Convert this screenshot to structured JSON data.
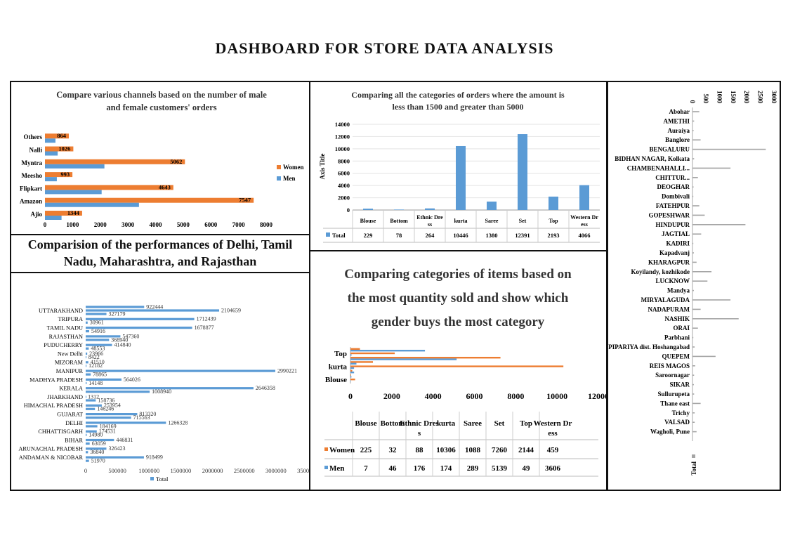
{
  "page_title": "DASHBOARD  FOR  STORE  DATA  ANALYSIS",
  "state_heading": "Comparision of the performances of Delhi, Tamil Nadu, Maharashtra, and Rajasthan",
  "colors": {
    "women": "#ED7D31",
    "men": "#5B9BD5",
    "total": "#5B9BD5",
    "gray": "#A5A5A5"
  },
  "chart_data": [
    {
      "id": "channels",
      "type": "bar",
      "orientation": "horizontal",
      "title": "Compare various channels based on the number of male and female customers' orders",
      "categories": [
        "Ajio",
        "Amazon",
        "Flipkart",
        "Meesho",
        "Myntra",
        "Nalli",
        "Others"
      ],
      "series": [
        {
          "name": "Women",
          "values": [
            1344,
            7547,
            4643,
            993,
            5062,
            1026,
            864
          ]
        },
        {
          "name": "Men",
          "values": [
            600,
            3400,
            2050,
            430,
            2150,
            460,
            380
          ]
        }
      ],
      "xlim": [
        0,
        8000
      ],
      "xticks": [
        0,
        1000,
        2000,
        3000,
        4000,
        5000,
        6000,
        7000,
        8000
      ],
      "legend": "right"
    },
    {
      "id": "amount",
      "type": "bar",
      "title": "Comparing all the categories of orders where the amount is less than 1500 and greater than 5000",
      "ylabel": "Axis Title",
      "categories": [
        "Blouse",
        "Bottom",
        "Ethnic Dre ss",
        "kurta",
        "Saree",
        "Set",
        "Top",
        "Western Dr ess"
      ],
      "series": [
        {
          "name": "Total",
          "values": [
            229,
            78,
            264,
            10446,
            1380,
            12391,
            2193,
            4066
          ]
        }
      ],
      "ylim": [
        0,
        14000
      ],
      "yticks": [
        0,
        2000,
        4000,
        6000,
        8000,
        10000,
        12000,
        14000
      ]
    },
    {
      "id": "states",
      "type": "bar",
      "orientation": "horizontal",
      "categories": [
        "ANDAMAN & NICOBAR",
        "ARUNACHAL PRADESH",
        "BIHAR",
        "CHHATTISGARH",
        "DELHI",
        "GUJARAT",
        "HIMACHAL PRADESH",
        "JHARKHAND",
        "KERALA",
        "MADHYA PRADESH",
        "MANIPUR",
        "MIZORAM",
        "New Delhi",
        "PUDUCHERRY",
        "RAJASTHAN",
        "TAMIL NADU",
        "TRIPURA",
        "UTTARAKHAND"
      ],
      "bars": [
        {
          "values": [
            51970,
            36840,
            63059,
            14980,
            184169,
            715563,
            146246,
            158736,
            1008940,
            14148,
            78865,
            12182,
            8422,
            48553,
            368940,
            54916,
            30961,
            327179
          ]
        },
        {
          "values": [
            918499,
            326423,
            446831,
            174531,
            1266328,
            813320,
            253954,
            1312,
            2646358,
            564026,
            2990221,
            41510,
            23966,
            414840,
            547360,
            1678877,
            1712439,
            2104659
          ]
        },
        {
          "values": [
            null,
            null,
            null,
            null,
            null,
            null,
            null,
            null,
            null,
            null,
            null,
            null,
            null,
            null,
            null,
            null,
            null,
            922444
          ]
        }
      ],
      "xlim": [
        0,
        3500000
      ],
      "xticks": [
        0,
        500000,
        1000000,
        1500000,
        2000000,
        2500000,
        3000000,
        3500000
      ],
      "legend_label": "Total",
      "legend": "bottom"
    },
    {
      "id": "gender",
      "type": "bar",
      "orientation": "horizontal",
      "title": "Comparing categories of items based on the most quantity sold and show which gender buys the most category",
      "categories": [
        "Blouse",
        "Bottom",
        "Ethnic Dress",
        "kurta",
        "Saree",
        "Set",
        "Top",
        "Western Dress"
      ],
      "axis_labels": [
        "Blouse",
        "kurta",
        "Top"
      ],
      "series": [
        {
          "name": "Women",
          "values": [
            225,
            32,
            88,
            10306,
            1088,
            7260,
            2144,
            459
          ]
        },
        {
          "name": "Men",
          "values": [
            7,
            46,
            176,
            174,
            289,
            5139,
            49,
            3606
          ]
        }
      ],
      "table_headers": [
        "Blouse",
        "Bottom",
        "Ethnic Dres s",
        "kurta",
        "Saree",
        "Set",
        "Top",
        "Western Dr ess"
      ],
      "xlim": [
        0,
        12000
      ],
      "xticks": [
        0,
        2000,
        4000,
        6000,
        8000,
        10000,
        12000
      ]
    },
    {
      "id": "cities",
      "type": "bar",
      "orientation": "horizontal",
      "categories": [
        "Abohar",
        "AMETHI",
        "Auraiya",
        "Banglore",
        "BENGALURU",
        "BIDHAN NAGAR, Kolkata",
        "CHAMBENAHALLI...",
        "CHITTUR...",
        "DEOGHAR",
        "Dombivali",
        "FATEHPUR",
        "GOPESHWAR",
        "HINDUPUR",
        "JAGTIAL",
        "KADIRI",
        "Kapadvanj",
        "KHARAGPUR",
        "Koyilandy, kozhikode",
        "LUCKNOW",
        "Mandya",
        "MIRYALAGUDA",
        "NADAPURAM",
        "NASHIK",
        "ORAI",
        "Parbhani",
        "PIPARIYA dist. Hoshangabad",
        "QUEPEM",
        "REIS MAGOS",
        "Saroornagar",
        "SIKAR",
        "Sullurupeta",
        "Thane east",
        "Trichy",
        "VALSAD",
        "Wagholi, Pune"
      ],
      "series": [
        {
          "name": "Total",
          "values": [
            250,
            60,
            40,
            300,
            2700,
            60,
            1400,
            200,
            40,
            30,
            250,
            450,
            1950,
            320,
            30,
            50,
            150,
            700,
            550,
            50,
            1400,
            300,
            1700,
            200,
            30,
            80,
            850,
            100,
            60,
            50,
            60,
            300,
            80,
            80,
            150
          ]
        }
      ],
      "xlim": [
        0,
        3000
      ],
      "xticks": [
        0,
        500,
        1000,
        1500,
        2000,
        2500,
        3000
      ],
      "legend": "bottom"
    }
  ]
}
